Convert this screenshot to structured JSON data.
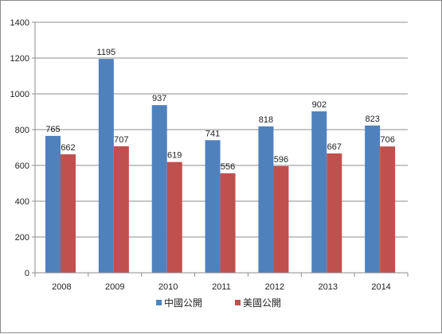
{
  "chart_data": {
    "type": "bar",
    "categories": [
      "2008",
      "2009",
      "2010",
      "2011",
      "2012",
      "2013",
      "2014"
    ],
    "series": [
      {
        "name": "中國公開",
        "color": "#4F81BD",
        "values": [
          765,
          1195,
          937,
          741,
          818,
          902,
          823
        ]
      },
      {
        "name": "美國公開",
        "color": "#C0504D",
        "values": [
          662,
          707,
          619,
          556,
          596,
          667,
          706
        ]
      }
    ],
    "ylim": [
      0,
      1400
    ],
    "yticks": [
      0,
      200,
      400,
      600,
      800,
      1000,
      1200,
      1400
    ],
    "gridlines": true,
    "legend_position": "bottom",
    "data_labels": true,
    "title": "",
    "xlabel": "",
    "ylabel": ""
  }
}
